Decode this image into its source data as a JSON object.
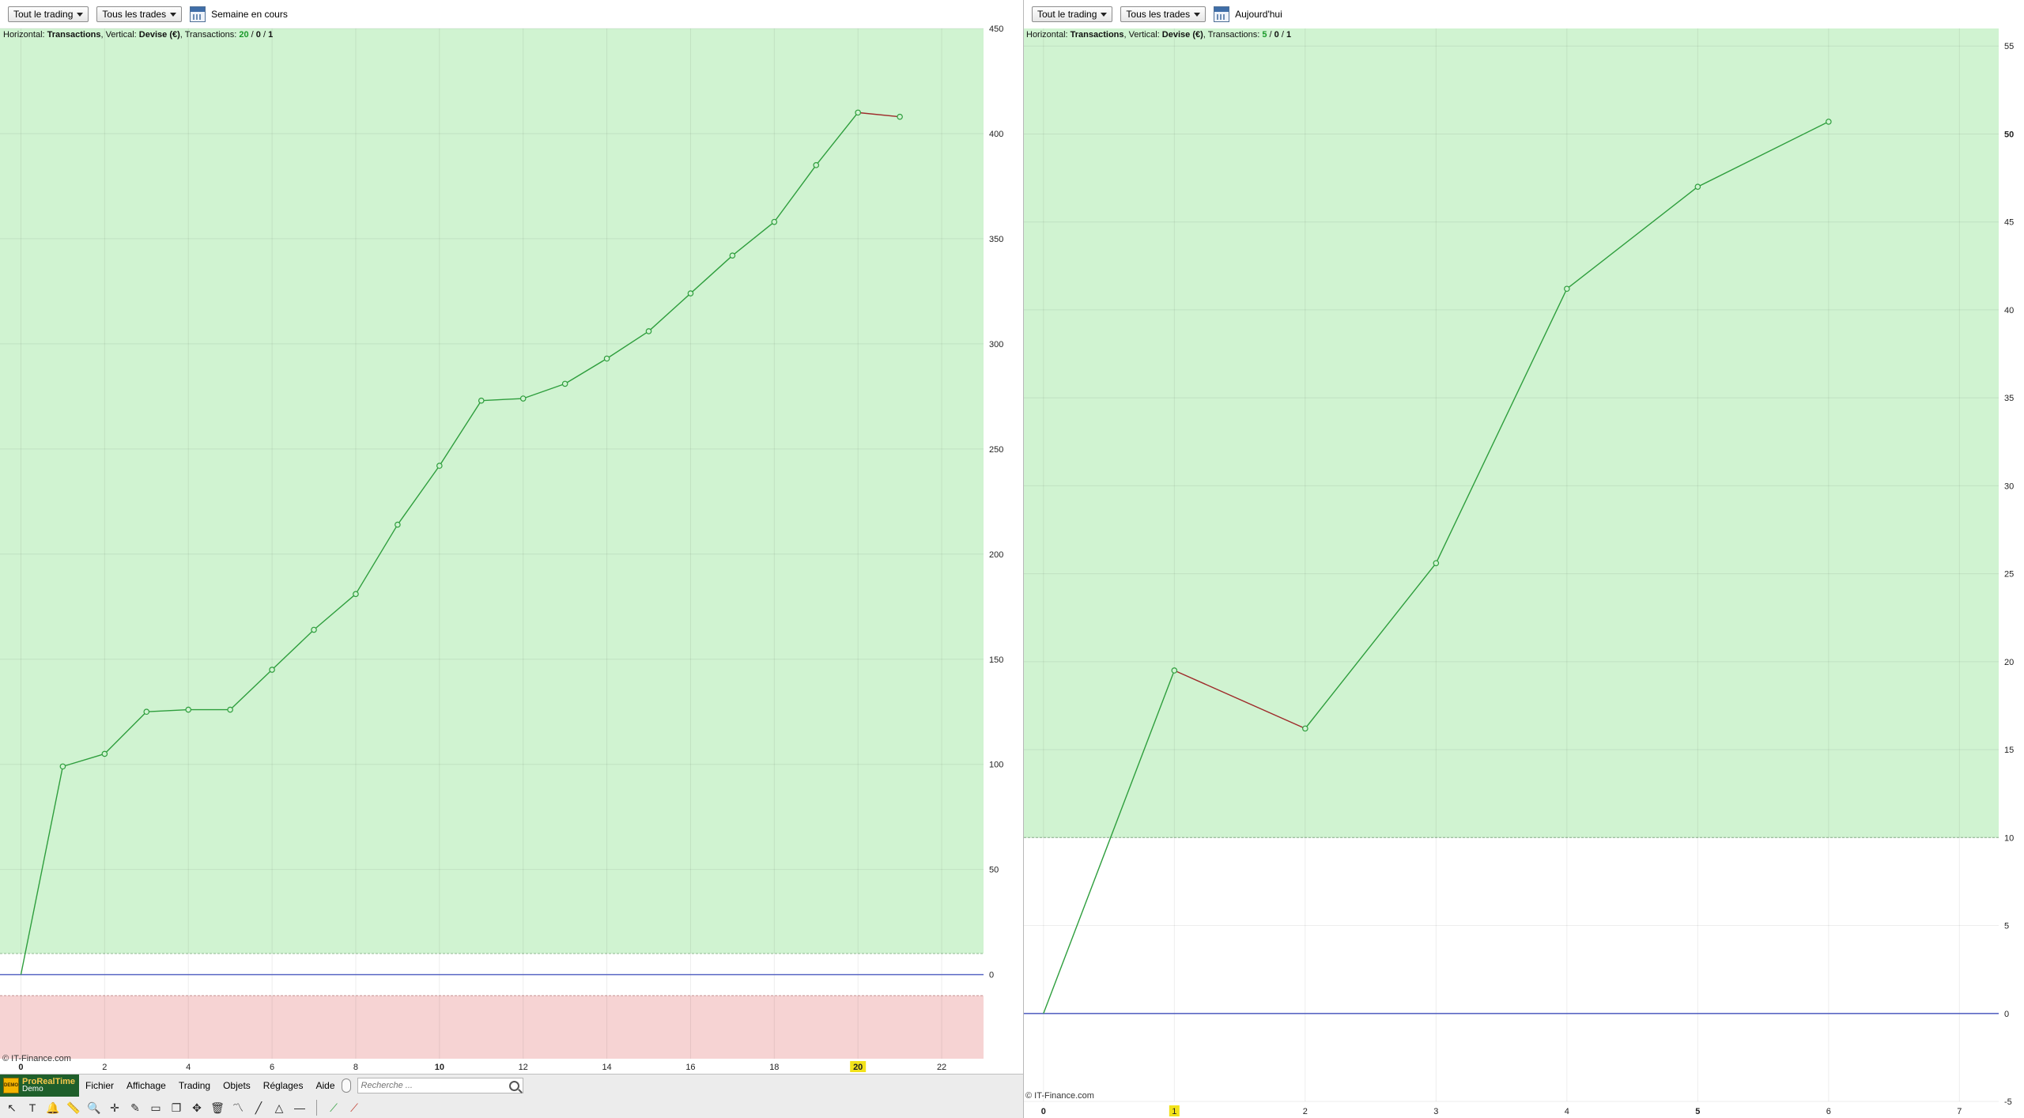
{
  "left": {
    "toolbar": {
      "scope_label": "Tout le trading",
      "trades_label": "Tous les trades",
      "period_label": "Semaine en cours"
    },
    "info": {
      "h_prefix": "Horizontal: ",
      "h_value": "Transactions",
      "v_prefix": ", Vertical: ",
      "v_value": "Devise (€)",
      "t_prefix": ", Transactions: ",
      "t_win": "20",
      "sep1": " / ",
      "t_neutral": "0",
      "sep2": " / ",
      "t_loss": "1"
    },
    "copyright": "© IT-Finance.com"
  },
  "right": {
    "toolbar": {
      "scope_label": "Tout le trading",
      "trades_label": "Tous les trades",
      "period_label": "Aujourd'hui"
    },
    "info": {
      "h_prefix": "Horizontal: ",
      "h_value": "Transactions",
      "v_prefix": ", Vertical: ",
      "v_value": "Devise (€)",
      "t_prefix": ", Transactions: ",
      "t_win": "5",
      "sep1": " / ",
      "t_neutral": "0",
      "sep2": " / ",
      "t_loss": "1"
    },
    "copyright": "© IT-Finance.com"
  },
  "bottom": {
    "brand_name": "ProRealTime",
    "brand_sub": "Demo",
    "logo_text": "DEMO",
    "menu": [
      "Fichier",
      "Affichage",
      "Trading",
      "Objets",
      "Réglages",
      "Aide"
    ],
    "search_placeholder": "Recherche ...",
    "tools": [
      "pointer-icon",
      "text-icon",
      "alert-bell-icon",
      "ruler-icon",
      "zoom-icon",
      "crosshair-icon",
      "draw-icon",
      "rectangle-icon",
      "copy-icon",
      "move-icon",
      "trash-icon",
      "indicator-icon",
      "line-icon",
      "fibonacci-icon",
      "horizontal-line-icon",
      "buy-order-icon",
      "sell-order-icon"
    ]
  },
  "colors": {
    "profit_zone": "#d0f3d1",
    "loss_zone": "#f6d3d3",
    "gain_line": "#2e9e3d",
    "loss_line": "#9e2a2a",
    "zero_line": "#5a67c4",
    "win_count": "#1a9a2a",
    "highlight_tick": "#f2e21a"
  },
  "chart_data": [
    {
      "type": "line",
      "x": [
        0,
        1,
        2,
        3,
        4,
        5,
        6,
        7,
        8,
        9,
        10,
        11,
        12,
        13,
        14,
        15,
        16,
        17,
        18,
        19,
        20,
        21
      ],
      "y": [
        0,
        99,
        105,
        125,
        126,
        126,
        145,
        164,
        181,
        214,
        242,
        273,
        274,
        281,
        293,
        306,
        324,
        342,
        358,
        385,
        410,
        408
      ],
      "marker_points": 21,
      "losing_segments": [
        [
          20,
          21
        ]
      ],
      "xlim": [
        -0.5,
        23
      ],
      "ylim": [
        -40,
        450
      ],
      "x_ticks": [
        0,
        2,
        4,
        6,
        8,
        10,
        12,
        14,
        16,
        18,
        20,
        22
      ],
      "x_bold_ticks": [
        0,
        10,
        20
      ],
      "x_highlight": 20,
      "y_ticks": [
        0,
        50,
        100,
        150,
        200,
        250,
        300,
        350,
        400,
        450
      ],
      "profit_zone_from": 10,
      "loss_zone_to": -10,
      "grid": true
    },
    {
      "type": "line",
      "x": [
        0,
        1,
        2,
        3,
        4,
        5,
        6
      ],
      "y": [
        0,
        19.5,
        16.2,
        25.6,
        41.2,
        47.0,
        50.7
      ],
      "marker_points": 6,
      "losing_segments": [
        [
          1,
          2
        ]
      ],
      "xlim": [
        -0.15,
        7.3
      ],
      "ylim": [
        -5,
        56
      ],
      "x_ticks": [
        0,
        1,
        2,
        3,
        4,
        5,
        6,
        7
      ],
      "x_bold_ticks": [
        0,
        5
      ],
      "x_highlight": 1,
      "y_ticks": [
        -5,
        0,
        5,
        10,
        15,
        20,
        25,
        30,
        35,
        40,
        45,
        50,
        55
      ],
      "y_bold_ticks": [
        50
      ],
      "profit_zone_from": 10,
      "grid": true
    }
  ]
}
